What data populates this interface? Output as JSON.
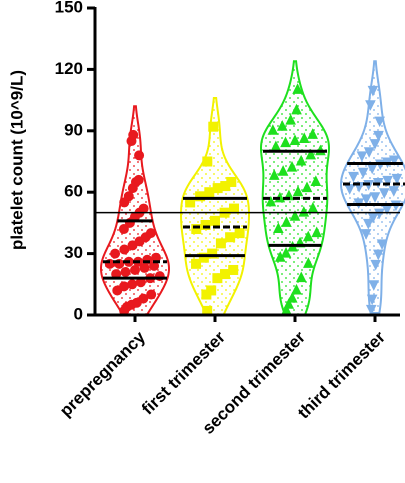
{
  "chart_data": {
    "type": "violin",
    "y_label": "platelet count (10^9/L)",
    "ylim": [
      0,
      150
    ],
    "yticks": [
      0,
      30,
      60,
      90,
      120,
      150
    ],
    "reference_line": 50,
    "categories": [
      "prepregnancy",
      "first trimester",
      "second trimester",
      "third trimester"
    ],
    "series": [
      {
        "name": "prepregnancy",
        "color": "#e8191e",
        "marker": "circle",
        "values": [
          2,
          4,
          5,
          6,
          8,
          10,
          12,
          14,
          15,
          16,
          18,
          19,
          20,
          21,
          22,
          23,
          24,
          25,
          25,
          26,
          26,
          27,
          28,
          30,
          32,
          34,
          36,
          38,
          40,
          42,
          45,
          48,
          50,
          52,
          55,
          58,
          62,
          65,
          66,
          78,
          85,
          88
        ],
        "quartiles": [
          18,
          26,
          46
        ]
      },
      {
        "name": "first trimester",
        "color": "#f2f200",
        "marker": "square",
        "values": [
          2,
          10,
          12,
          18,
          20,
          22,
          25,
          28,
          30,
          35,
          38,
          40,
          42,
          44,
          46,
          50,
          52,
          55,
          58,
          60,
          62,
          63,
          65,
          75,
          92
        ],
        "quartiles": [
          29,
          43,
          57
        ]
      },
      {
        "name": "second trimester",
        "color": "#1ee01e",
        "marker": "triangle",
        "values": [
          2,
          5,
          8,
          12,
          18,
          25,
          28,
          30,
          33,
          35,
          38,
          40,
          42,
          45,
          48,
          50,
          52,
          55,
          57,
          58,
          60,
          62,
          65,
          68,
          70,
          72,
          75,
          78,
          80,
          82,
          84,
          85,
          86,
          88,
          90,
          92,
          95,
          100,
          110
        ],
        "quartiles": [
          34,
          57,
          80
        ]
      },
      {
        "name": "third trimester",
        "color": "#7fb0e8",
        "marker": "triangle-down",
        "values": [
          3,
          8,
          15,
          25,
          30,
          35,
          40,
          45,
          48,
          50,
          52,
          54,
          55,
          57,
          58,
          60,
          61,
          62,
          63,
          64,
          65,
          66,
          67,
          68,
          70,
          72,
          74,
          75,
          76,
          78,
          80,
          84,
          88,
          95,
          103,
          110
        ],
        "quartiles": [
          54,
          64,
          74
        ]
      }
    ]
  }
}
